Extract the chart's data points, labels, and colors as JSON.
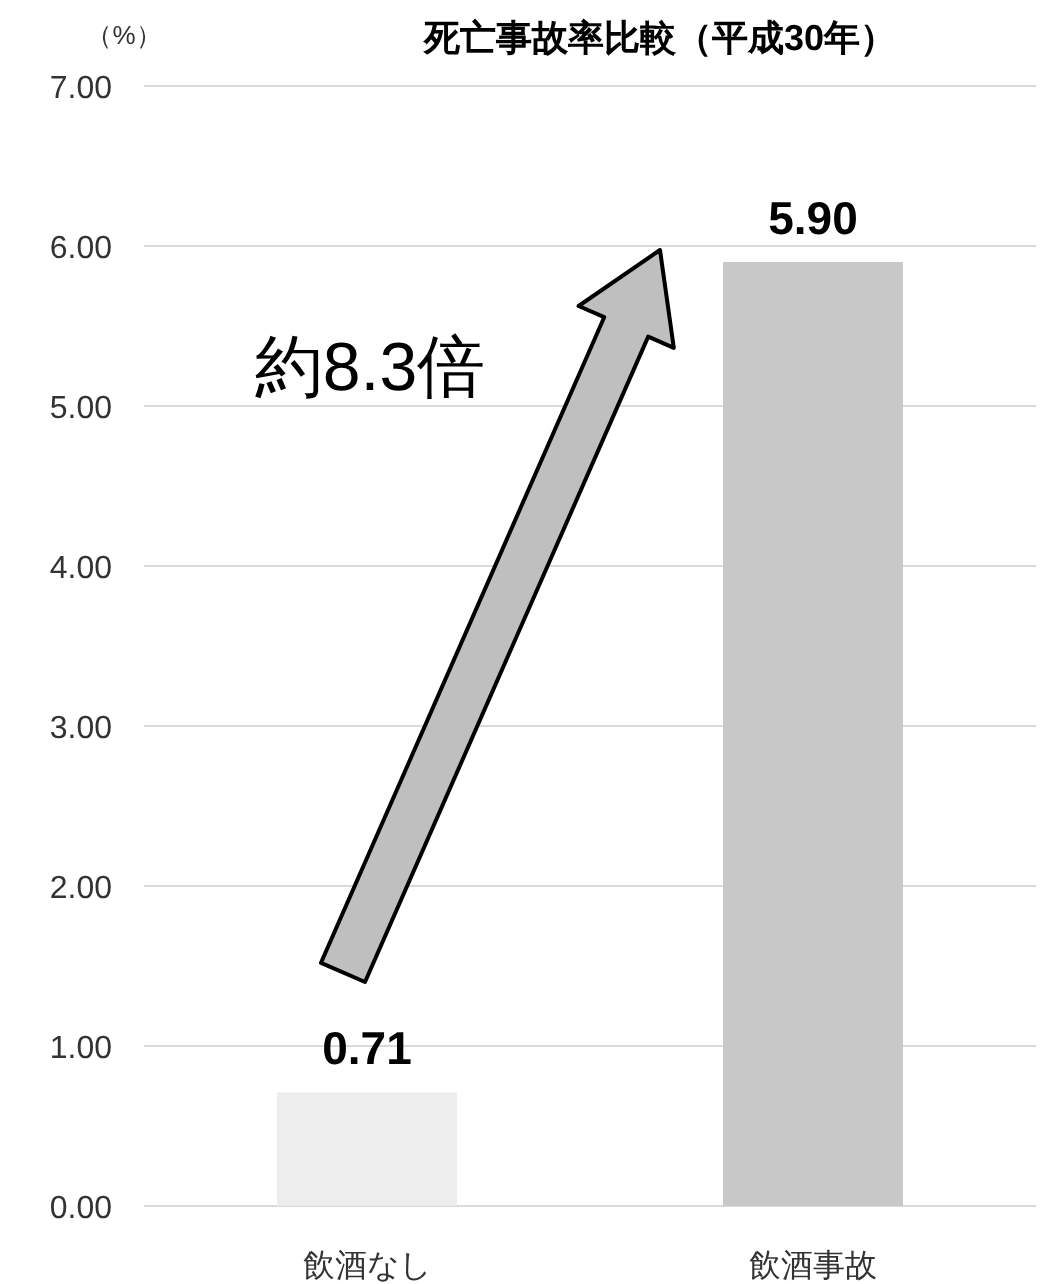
{
  "chart_data": {
    "type": "bar",
    "title": "死亡事故率比較（平成30年）",
    "ylabel": "（%）",
    "categories": [
      "飲酒なし",
      "飲酒事故"
    ],
    "values": [
      0.71,
      5.9
    ],
    "colors": [
      "#ededed",
      "#c8c8c8"
    ],
    "value_labels": [
      "0.71",
      "5.90"
    ],
    "ylim": [
      0,
      7
    ],
    "yticks": [
      {
        "value": 0,
        "label": "0.00"
      },
      {
        "value": 1,
        "label": "1.00"
      },
      {
        "value": 2,
        "label": "2.00"
      },
      {
        "value": 3,
        "label": "3.00"
      },
      {
        "value": 4,
        "label": "4.00"
      },
      {
        "value": 5,
        "label": "5.00"
      },
      {
        "value": 6,
        "label": "6.00"
      },
      {
        "value": 7,
        "label": "7.00"
      }
    ],
    "grid": "y",
    "annotations": [
      "約8.3倍"
    ]
  }
}
